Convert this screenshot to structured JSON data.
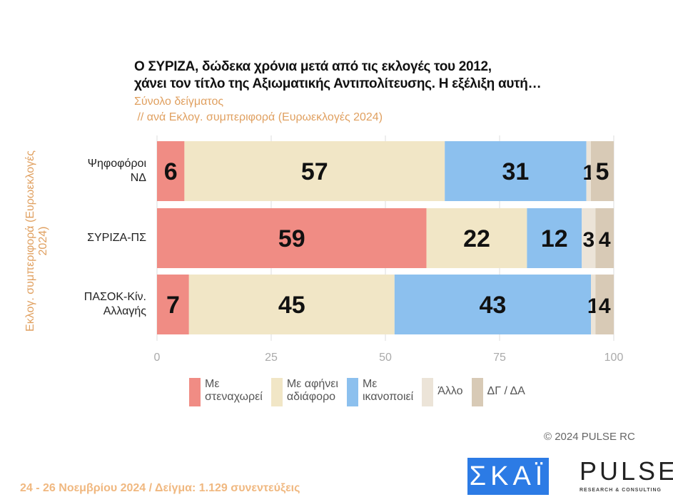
{
  "chart_data": {
    "type": "bar",
    "stacked": true,
    "orientation": "horizontal",
    "title": "Ο ΣΥΡΙΖΑ, δώδεκα χρόνια μετά από τις εκλογές του 2012, χάνει τον τίτλο της Αξιωματικής Αντιπολίτευσης. Η εξέλιξη αυτή…",
    "title_lines": [
      "Ο ΣΥΡΙΖΑ, δώδεκα χρόνια μετά από τις εκλογές του 2012,",
      "χάνει τον τίτλο της Αξιωματικής Αντιπολίτευσης. Η εξέλιξη αυτή…"
    ],
    "subtitle_lines": [
      "Σύνολο δείγματος",
      " // ανά Εκλογ. συμπεριφορά (Ευρωεκλογές 2024)"
    ],
    "ylabel": "Εκλογ. συμπεριφορά (Ευρωεκλογές 2024)",
    "categories": [
      [
        "Ψηφοφόροι",
        "ΝΔ"
      ],
      [
        "ΣΥΡΙΖΑ-ΠΣ"
      ],
      [
        "ΠΑΣΟΚ-Κίν.",
        "Αλλαγής"
      ]
    ],
    "series": [
      {
        "name": "Με στεναχωρεί",
        "name_lines": [
          "Με",
          "στεναχωρεί"
        ],
        "color": "#f08c84",
        "values": [
          6,
          59,
          7
        ]
      },
      {
        "name": "Με αφήνει αδιάφορο",
        "name_lines": [
          "Με αφήνει",
          "αδιάφορο"
        ],
        "color": "#f1e6c6",
        "values": [
          57,
          22,
          45
        ]
      },
      {
        "name": "Με ικανοποιεί",
        "name_lines": [
          "Με",
          "ικανοποιεί"
        ],
        "color": "#8cc0ee",
        "values": [
          31,
          12,
          43
        ]
      },
      {
        "name": "Άλλο",
        "name_lines": [
          "Άλλο"
        ],
        "color": "#ece4d8",
        "values": [
          1,
          3,
          1
        ]
      },
      {
        "name": "ΔΓ / ΔΑ",
        "name_lines": [
          "ΔΓ / ΔΑ"
        ],
        "color": "#d8cab6",
        "values": [
          5,
          4,
          4
        ]
      }
    ],
    "xlim": [
      0,
      100
    ],
    "xticks": [
      "0",
      "25",
      "50",
      "75",
      "100"
    ],
    "legend": "bottom"
  },
  "footer": {
    "copyright": "©  2024  PULSE RC",
    "dates": "24 - 26 Νοεμβρίου 2024  /  Δείγμα:  1.129 συνεντεύξεις",
    "skai": "ΣΚΑΪ",
    "pulse": "PULSE",
    "pulse_sub": "RESEARCH & CONSULTING"
  }
}
